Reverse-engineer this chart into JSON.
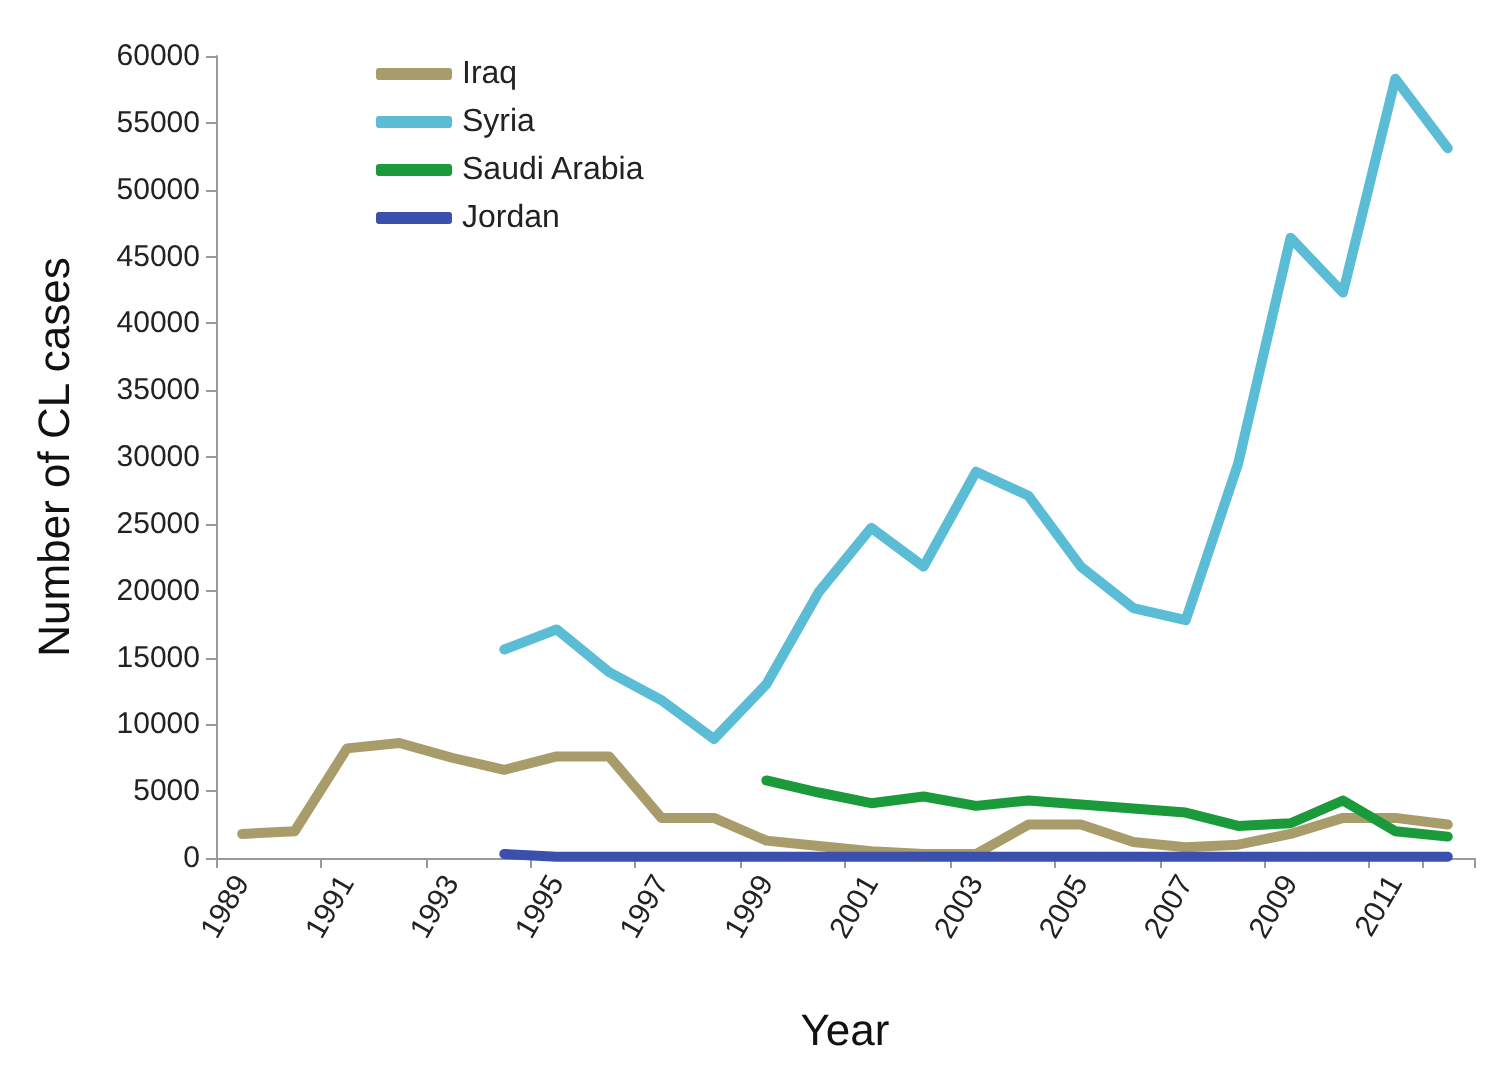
{
  "chart_data": {
    "type": "line",
    "xlabel": "Year",
    "ylabel": "Number of CL cases",
    "categories": [
      "1989",
      null,
      "1991",
      null,
      "1993",
      null,
      "1995",
      null,
      "1997",
      null,
      "1999",
      null,
      "2001",
      null,
      "2003",
      null,
      "2005",
      null,
      "2007",
      null,
      "2009",
      null,
      "2011",
      null
    ],
    "series": [
      {
        "name": "Iraq",
        "color": "#a89c6a",
        "values": [
          1800,
          2000,
          8200,
          8600,
          7500,
          6600,
          7600,
          7600,
          3000,
          3000,
          1300,
          900,
          500,
          300,
          300,
          2500,
          2500,
          1200,
          800,
          1000,
          1800,
          3000,
          3000,
          2500
        ]
      },
      {
        "name": "Syria",
        "color": "#5bbcd6",
        "values": [
          null,
          null,
          null,
          null,
          null,
          15600,
          17100,
          13900,
          11800,
          8900,
          13000,
          19900,
          24700,
          21800,
          28900,
          27100,
          21800,
          18700,
          17800,
          29500,
          46400,
          42300,
          58300,
          53100
        ]
      },
      {
        "name": "Saudi Arabia",
        "color": "#1a9a3a",
        "values": [
          null,
          null,
          null,
          null,
          null,
          null,
          null,
          null,
          null,
          null,
          5800,
          4900,
          4100,
          4600,
          3900,
          4300,
          4000,
          3700,
          3400,
          2400,
          2600,
          4300,
          2000,
          1600
        ]
      },
      {
        "name": "Jordan",
        "color": "#3a4fae",
        "values": [
          null,
          null,
          null,
          null,
          null,
          300,
          100,
          100,
          100,
          100,
          100,
          100,
          100,
          100,
          100,
          100,
          100,
          100,
          100,
          100,
          100,
          100,
          100,
          100
        ]
      }
    ],
    "ylim": [
      0,
      60000
    ],
    "yticks": [
      0,
      5000,
      10000,
      15000,
      20000,
      25000,
      30000,
      35000,
      40000,
      45000,
      50000,
      55000,
      60000
    ],
    "grid": false,
    "legend": "top left",
    "marker": "none",
    "line_style": "solid"
  }
}
